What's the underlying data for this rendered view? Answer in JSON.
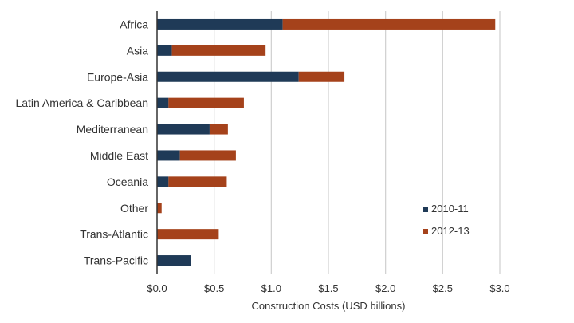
{
  "chart_data": {
    "type": "bar",
    "orientation": "horizontal",
    "stacked": true,
    "categories": [
      "Africa",
      "Asia",
      "Europe-Asia",
      "Latin America & Caribbean",
      "Mediterranean",
      "Middle East",
      "Oceania",
      "Other",
      "Trans-Atlantic",
      "Trans-Pacific"
    ],
    "series": [
      {
        "name": "2010-11",
        "color": "#1f3a57",
        "values": [
          1.1,
          0.13,
          1.24,
          0.1,
          0.46,
          0.2,
          0.1,
          0.0,
          0.0,
          0.3
        ]
      },
      {
        "name": "2012-13",
        "color": "#a5421b",
        "values": [
          1.86,
          0.82,
          0.4,
          0.66,
          0.16,
          0.49,
          0.51,
          0.04,
          0.54,
          0.0
        ]
      }
    ],
    "xlim": [
      0,
      3.0
    ],
    "xticks": [
      0,
      0.5,
      1.0,
      1.5,
      2.0,
      2.5,
      3.0
    ],
    "xtick_labels": [
      "$0.0",
      "$0.5",
      "$1.0",
      "$1.5",
      "$2.0",
      "$2.5",
      "$3.0"
    ],
    "xlabel": "Construction Costs (USD billions)",
    "ylabel": "",
    "title": "",
    "grid": "vertical",
    "legend_position": "bottom-right"
  }
}
